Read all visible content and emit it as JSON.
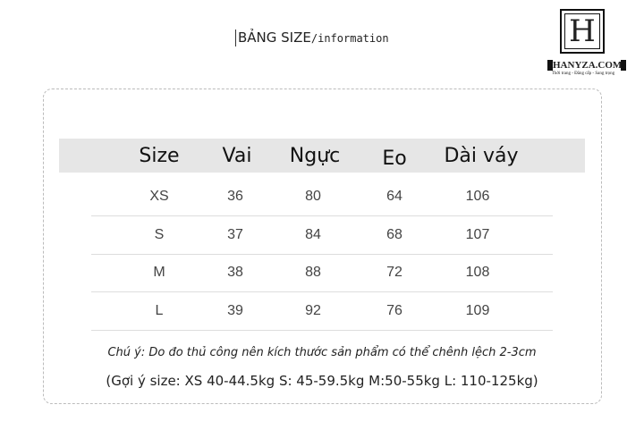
{
  "title": {
    "main": "BẢNG SIZE",
    "sub": "/information"
  },
  "logo": {
    "letter": "H",
    "name": "HANYZA.COM",
    "tagline": "Thời trang - Đẳng cấp - Sang trọng"
  },
  "table": {
    "headers": [
      "Size",
      "Vai",
      "Ngực",
      "Eo",
      "Dài váy"
    ],
    "rows": [
      [
        "XS",
        "36",
        "80",
        "64",
        "106"
      ],
      [
        "S",
        "37",
        "84",
        "68",
        "107"
      ],
      [
        "M",
        "38",
        "88",
        "72",
        "108"
      ],
      [
        "L",
        "39",
        "92",
        "76",
        "109"
      ]
    ]
  },
  "note": "Chú ý: Do đo thủ công nên kích thước sản phẩm có thể chênh lệch 2-3cm",
  "suggestion": "(Gợi ý size: XS 40-44.5kg  S: 45-59.5kg  M:50-55kg  L: 110-125kg)"
}
